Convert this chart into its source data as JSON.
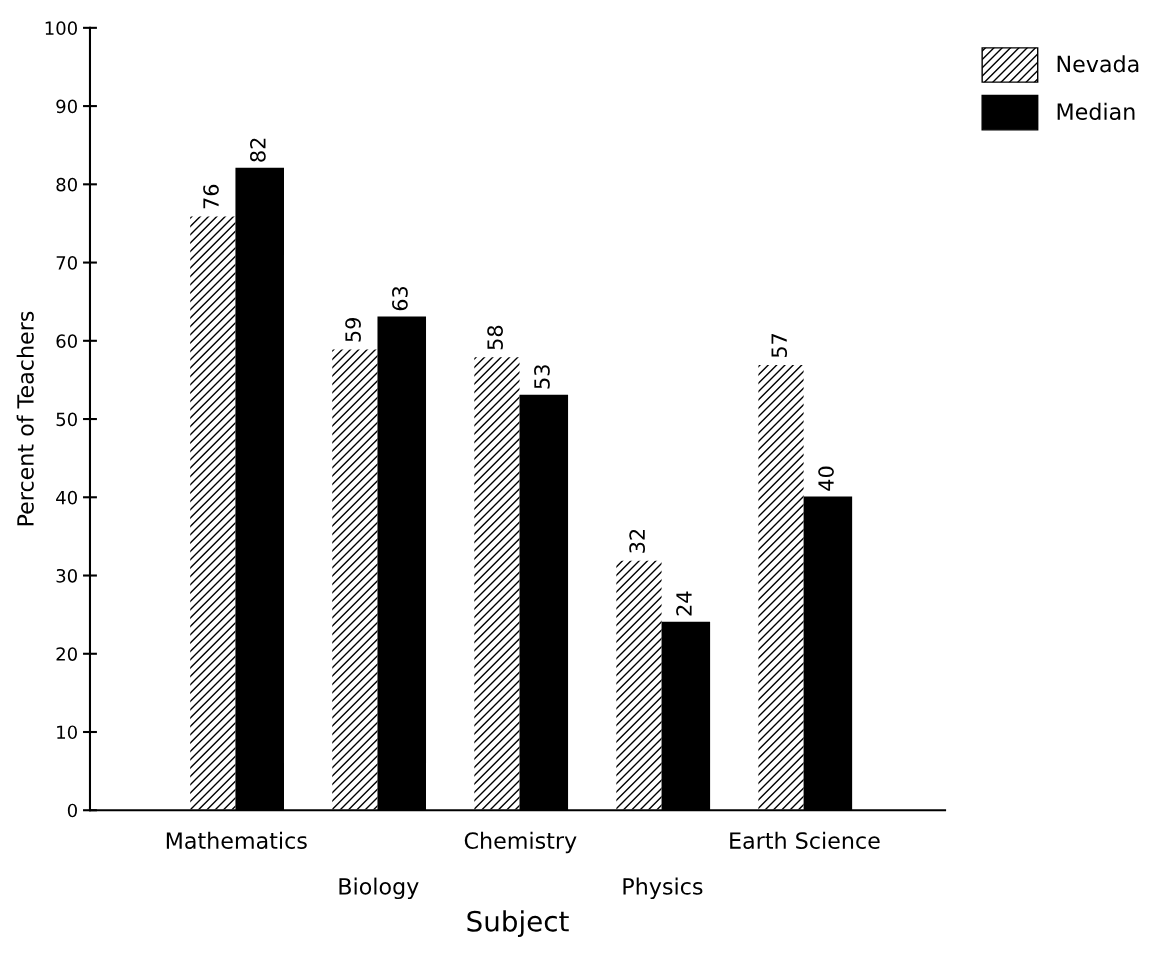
{
  "chart_data": {
    "type": "bar",
    "xlabel": "Subject",
    "ylabel": "Percent of Teachers",
    "categories": [
      "Mathematics",
      "Biology",
      "Chemistry",
      "Physics",
      "Earth Science"
    ],
    "series": [
      {
        "name": "Nevada",
        "color": "#ffffff",
        "values": [
          76,
          59,
          58,
          32,
          57
        ]
      },
      {
        "name": "Median",
        "color": "#000000",
        "values": [
          82,
          63,
          53,
          24,
          40
        ]
      }
    ],
    "ylim": [
      0,
      100
    ],
    "yticks": [
      0,
      10,
      20,
      30,
      40,
      50,
      60,
      70,
      80,
      90,
      100
    ],
    "data_labels": true,
    "legend": "top right",
    "grid": false
  }
}
